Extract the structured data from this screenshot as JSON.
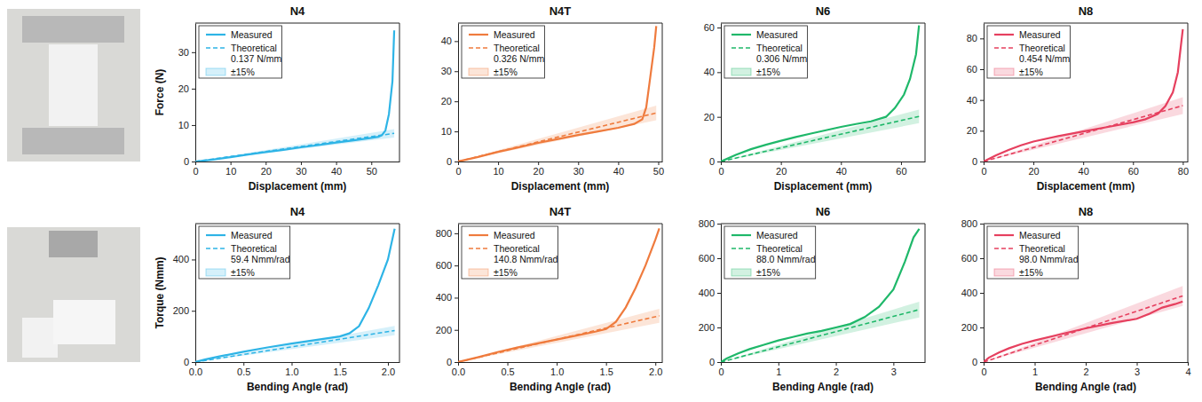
{
  "chart_data": [
    {
      "type": "line",
      "title": "N4",
      "x_label": "Displacement (mm)",
      "y_label": "Force (N)",
      "xlim": [
        0,
        58
      ],
      "xticks": [
        0,
        10,
        20,
        30,
        40,
        50
      ],
      "ylim": [
        0,
        38
      ],
      "yticks": [
        0,
        10,
        20,
        30
      ],
      "legend": "upper left",
      "series": [
        {
          "name": "Measured",
          "color": "#2eb4e6",
          "line_style": "solid",
          "x": [
            0,
            5,
            10,
            15,
            20,
            25,
            30,
            35,
            40,
            45,
            50,
            52,
            53,
            54,
            55,
            56,
            56.5
          ],
          "values": [
            0,
            0.5,
            1.2,
            1.9,
            2.6,
            3.2,
            3.9,
            4.5,
            5.2,
            5.8,
            6.5,
            6.8,
            7.2,
            8.5,
            13,
            22,
            36
          ]
        },
        {
          "name": "Theoretical\n0.137 N/mm",
          "color": "#2eb4e6",
          "line_style": "dashed",
          "x": [
            0,
            56.5
          ],
          "values": [
            0,
            7.74
          ]
        },
        {
          "name": "±15%",
          "type": "band",
          "color": "#2eb4e6",
          "x": [
            0,
            56.5
          ],
          "lower": [
            0,
            6.58
          ],
          "upper": [
            0,
            8.9
          ]
        }
      ]
    },
    {
      "type": "line",
      "title": "N4T",
      "x_label": "Displacement (mm)",
      "xlim": [
        0,
        51
      ],
      "xticks": [
        0,
        10,
        20,
        30,
        40,
        50
      ],
      "ylim": [
        0,
        46
      ],
      "yticks": [
        0,
        10,
        20,
        30,
        40
      ],
      "legend": "upper left",
      "series": [
        {
          "name": "Measured",
          "color": "#ef7b3e",
          "line_style": "solid",
          "x": [
            0,
            5,
            10,
            15,
            20,
            25,
            30,
            35,
            40,
            44,
            46,
            47,
            48,
            49,
            49.5
          ],
          "values": [
            0,
            1.5,
            3.2,
            4.7,
            6.2,
            7.5,
            8.8,
            10,
            11.2,
            12.5,
            14,
            18,
            28,
            38,
            45
          ]
        },
        {
          "name": "Theoretical\n0.326 N/mm",
          "color": "#ef7b3e",
          "line_style": "dashed",
          "x": [
            0,
            49.5
          ],
          "values": [
            0,
            16.14
          ]
        },
        {
          "name": "±15%",
          "type": "band",
          "color": "#ef7b3e",
          "x": [
            0,
            49.5
          ],
          "lower": [
            0,
            13.72
          ],
          "upper": [
            0,
            18.56
          ]
        }
      ]
    },
    {
      "type": "line",
      "title": "N6",
      "x_label": "Displacement (mm)",
      "xlim": [
        0,
        68
      ],
      "xticks": [
        0,
        20,
        40,
        60
      ],
      "ylim": [
        0,
        62
      ],
      "yticks": [
        0,
        20,
        40,
        60
      ],
      "legend": "upper left",
      "series": [
        {
          "name": "Measured",
          "color": "#1fb86a",
          "line_style": "solid",
          "x": [
            0,
            5,
            10,
            15,
            20,
            25,
            30,
            35,
            40,
            45,
            50,
            55,
            58,
            61,
            63,
            65,
            66
          ],
          "values": [
            0,
            3,
            5.5,
            7.5,
            9.3,
            11,
            12.5,
            14,
            15.5,
            16.8,
            18,
            20,
            24,
            30,
            37,
            48,
            61
          ]
        },
        {
          "name": "Theoretical\n0.306 N/mm",
          "color": "#1fb86a",
          "line_style": "dashed",
          "x": [
            0,
            66
          ],
          "values": [
            0,
            20.2
          ]
        },
        {
          "name": "±15%",
          "type": "band",
          "color": "#1fb86a",
          "x": [
            0,
            66
          ],
          "lower": [
            0,
            17.17
          ],
          "upper": [
            0,
            23.23
          ]
        }
      ]
    },
    {
      "type": "line",
      "title": "N8",
      "x_label": "Displacement (mm)",
      "xlim": [
        0,
        82
      ],
      "xticks": [
        0,
        20,
        40,
        60,
        80
      ],
      "ylim": [
        0,
        90
      ],
      "yticks": [
        0,
        20,
        40,
        60,
        80
      ],
      "legend": "upper left",
      "series": [
        {
          "name": "Measured",
          "color": "#e6405f",
          "line_style": "solid",
          "x": [
            0,
            5,
            10,
            15,
            20,
            30,
            40,
            50,
            60,
            65,
            70,
            73,
            76,
            78,
            80
          ],
          "values": [
            0,
            4,
            7.5,
            10.5,
            13,
            16.5,
            19.5,
            22.5,
            25.5,
            27.5,
            31,
            36,
            45,
            58,
            86
          ]
        },
        {
          "name": "Theoretical\n0.454 N/mm",
          "color": "#e6405f",
          "line_style": "dashed",
          "x": [
            0,
            80
          ],
          "values": [
            0,
            36.32
          ]
        },
        {
          "name": "±15%",
          "type": "band",
          "color": "#e6405f",
          "x": [
            0,
            80
          ],
          "lower": [
            0,
            30.87
          ],
          "upper": [
            0,
            41.77
          ]
        }
      ]
    },
    {
      "type": "line",
      "title": "N4",
      "x_label": "Bending Angle (rad)",
      "y_label": "Torque (Nmm)",
      "xlim": [
        0,
        2.12
      ],
      "xticks": [
        {
          "value": 0,
          "label": "0.0"
        },
        {
          "value": 0.5,
          "label": "0.5"
        },
        {
          "value": 1,
          "label": "1.0"
        },
        {
          "value": 1.5,
          "label": "1.5"
        },
        {
          "value": 2,
          "label": "2.0"
        }
      ],
      "ylim": [
        0,
        540
      ],
      "yticks": [
        0,
        200,
        400
      ],
      "legend": "upper left",
      "series": [
        {
          "name": "Measured",
          "color": "#2eb4e6",
          "line_style": "solid",
          "x": [
            0,
            0.1,
            0.25,
            0.5,
            0.75,
            1,
            1.25,
            1.5,
            1.6,
            1.7,
            1.8,
            1.9,
            2.0,
            2.07
          ],
          "values": [
            0,
            10,
            22,
            40,
            57,
            72,
            86,
            100,
            112,
            140,
            210,
            300,
            400,
            520
          ]
        },
        {
          "name": "Theoretical\n59.4 Nmm/rad",
          "color": "#2eb4e6",
          "line_style": "dashed",
          "x": [
            0,
            2.07
          ],
          "values": [
            0,
            122.96
          ]
        },
        {
          "name": "±15%",
          "type": "band",
          "color": "#2eb4e6",
          "x": [
            0,
            2.07
          ],
          "lower": [
            0,
            104.51
          ],
          "upper": [
            0,
            141.4
          ]
        }
      ]
    },
    {
      "type": "line",
      "title": "N4T",
      "x_label": "Bending Angle (rad)",
      "xlim": [
        0,
        2.07
      ],
      "xticks": [
        {
          "value": 0,
          "label": "0.0"
        },
        {
          "value": 0.5,
          "label": "0.5"
        },
        {
          "value": 1,
          "label": "1.0"
        },
        {
          "value": 1.5,
          "label": "1.5"
        },
        {
          "value": 2,
          "label": "2.0"
        }
      ],
      "ylim": [
        0,
        860
      ],
      "yticks": [
        0,
        200,
        400,
        600,
        800
      ],
      "legend": "upper left",
      "series": [
        {
          "name": "Measured",
          "color": "#ef7b3e",
          "line_style": "solid",
          "x": [
            0,
            0.2,
            0.4,
            0.6,
            0.8,
            1,
            1.2,
            1.4,
            1.5,
            1.6,
            1.7,
            1.8,
            1.9,
            2.0,
            2.04
          ],
          "values": [
            0,
            30,
            62,
            90,
            115,
            140,
            165,
            190,
            205,
            250,
            340,
            460,
            600,
            760,
            830
          ]
        },
        {
          "name": "Theoretical\n140.8 Nmm/rad",
          "color": "#ef7b3e",
          "line_style": "dashed",
          "x": [
            0,
            2.04
          ],
          "values": [
            0,
            287.23
          ]
        },
        {
          "name": "±15%",
          "type": "band",
          "color": "#ef7b3e",
          "x": [
            0,
            2.04
          ],
          "lower": [
            0,
            244.15
          ],
          "upper": [
            0,
            330.32
          ]
        }
      ]
    },
    {
      "type": "line",
      "title": "N6",
      "x_label": "Bending Angle (rad)",
      "xlim": [
        0,
        3.55
      ],
      "xticks": [
        0,
        1,
        2,
        3
      ],
      "ylim": [
        0,
        800
      ],
      "yticks": [
        0,
        200,
        400,
        600,
        800
      ],
      "legend": "upper left",
      "series": [
        {
          "name": "Measured",
          "color": "#1fb86a",
          "line_style": "solid",
          "x": [
            0,
            0.1,
            0.3,
            0.5,
            0.75,
            1,
            1.25,
            1.5,
            1.75,
            2,
            2.25,
            2.5,
            2.75,
            3,
            3.2,
            3.35,
            3.45
          ],
          "values": [
            0,
            20,
            50,
            75,
            100,
            125,
            145,
            165,
            180,
            200,
            220,
            260,
            320,
            420,
            580,
            720,
            770
          ]
        },
        {
          "name": "Theoretical\n88.0 Nmm/rad",
          "color": "#1fb86a",
          "line_style": "dashed",
          "x": [
            0,
            3.45
          ],
          "values": [
            0,
            303.6
          ]
        },
        {
          "name": "±15%",
          "type": "band",
          "color": "#1fb86a",
          "x": [
            0,
            3.45
          ],
          "lower": [
            0,
            258.06
          ],
          "upper": [
            0,
            349.14
          ]
        }
      ]
    },
    {
      "type": "line",
      "title": "N8",
      "x_label": "Bending Angle (rad)",
      "xlim": [
        0,
        4.0
      ],
      "xticks": [
        0,
        1,
        2,
        3,
        4
      ],
      "ylim": [
        0,
        800
      ],
      "yticks": [
        0,
        200,
        400,
        600,
        800
      ],
      "legend": "upper left",
      "series": [
        {
          "name": "Measured",
          "color": "#e6405f",
          "line_style": "solid",
          "x": [
            0,
            0.1,
            0.3,
            0.5,
            0.75,
            1,
            1.5,
            2,
            2.5,
            3,
            3.25,
            3.5,
            3.75,
            3.9
          ],
          "values": [
            0,
            25,
            55,
            80,
            105,
            125,
            160,
            195,
            225,
            250,
            280,
            315,
            335,
            350
          ]
        },
        {
          "name": "Theoretical\n98.0 Nmm/rad",
          "color": "#e6405f",
          "line_style": "dashed",
          "x": [
            0,
            3.9
          ],
          "values": [
            0,
            382.2
          ]
        },
        {
          "name": "±15%",
          "type": "band",
          "color": "#e6405f",
          "x": [
            0,
            3.9
          ],
          "lower": [
            0,
            324.87
          ],
          "upper": [
            0,
            439.53
          ]
        }
      ]
    }
  ]
}
